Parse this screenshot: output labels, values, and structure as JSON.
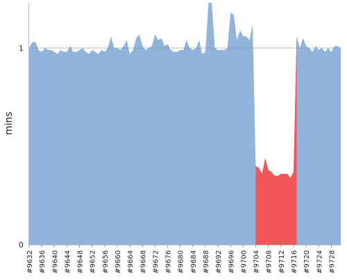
{
  "chart_data": {
    "type": "area",
    "title": "",
    "xlabel": "",
    "ylabel": "mins",
    "ylim": [
      0,
      1.23
    ],
    "yticks": [
      0,
      1
    ],
    "reference_line": 1,
    "grid": false,
    "legend": "none",
    "colors": {
      "normal": "#90b4dc",
      "highlight": "#f25656",
      "reference": "#888888"
    },
    "x_tick_labels": [
      "#9632",
      "#9636",
      "#9640",
      "#9644",
      "#9648",
      "#9652",
      "#9656",
      "#9660",
      "#9664",
      "#9668",
      "#9672",
      "#9676",
      "#9680",
      "#9684",
      "#9688",
      "#9692",
      "#9696",
      "#9700",
      "#9704",
      "#9708",
      "#9712",
      "#9716",
      "#9720",
      "#9724",
      "#9728"
    ],
    "x_first": 9632,
    "x_last": 9731,
    "values": [
      1.0,
      1.03,
      1.03,
      0.99,
      0.98,
      1.0,
      0.99,
      0.99,
      0.98,
      0.97,
      0.99,
      0.98,
      0.98,
      1.01,
      0.98,
      0.98,
      0.99,
      1.0,
      0.98,
      0.97,
      0.99,
      0.98,
      0.97,
      0.99,
      0.98,
      1.0,
      1.06,
      1.0,
      1.0,
      0.99,
      1.01,
      1.04,
      0.97,
      0.99,
      1.05,
      1.07,
      1.01,
      0.99,
      1.0,
      1.01,
      1.07,
      1.04,
      1.05,
      1.01,
      1.02,
      0.99,
      0.98,
      0.98,
      0.99,
      0.99,
      1.04,
      1.0,
      0.99,
      1.0,
      1.04,
      0.97,
      0.98,
      1.23,
      1.23,
      1.0,
      0.99,
      0.99,
      0.99,
      1.0,
      1.18,
      1.17,
      1.04,
      1.09,
      1.06,
      1.06,
      1.04,
      1.12,
      0.4,
      0.39,
      0.36,
      0.44,
      0.38,
      0.37,
      0.35,
      0.35,
      0.36,
      0.36,
      0.36,
      0.34,
      0.37,
      1.06,
      1.0,
      1.05,
      1.01,
      1.0,
      0.98,
      1.01,
      0.99,
      1.0,
      0.98,
      1.0,
      0.98,
      1.01,
      1.01,
      1.0
    ],
    "highlight_range": [
      9704,
      9717
    ]
  }
}
